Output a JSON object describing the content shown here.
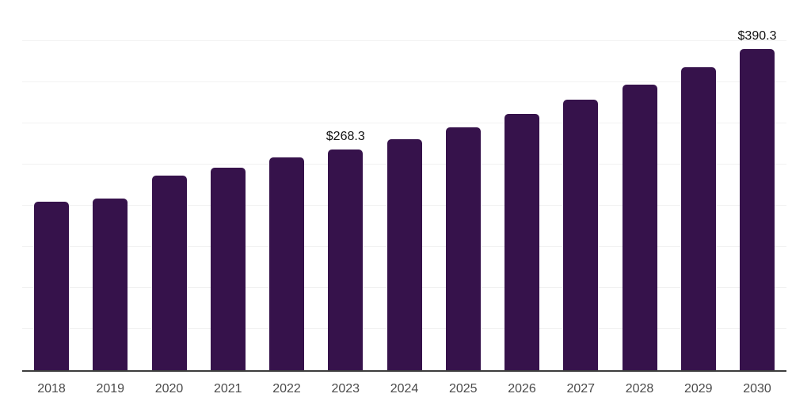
{
  "chart_data": {
    "type": "bar",
    "categories": [
      "2018",
      "2019",
      "2020",
      "2021",
      "2022",
      "2023",
      "2024",
      "2025",
      "2026",
      "2027",
      "2028",
      "2029",
      "2030"
    ],
    "values": [
      204.5,
      209.0,
      236.2,
      246.6,
      258.6,
      268.3,
      281.0,
      295.4,
      311.4,
      329.0,
      347.3,
      368.0,
      390.3
    ],
    "bar_labels": [
      "",
      "",
      "",
      "",
      "",
      "$268.3",
      "",
      "",
      "",
      "",
      "",
      "",
      "$390.3"
    ],
    "xlabel": "",
    "ylabel": "",
    "ylim": [
      0,
      450
    ],
    "grid_step": 50,
    "grid": true,
    "legend": false,
    "y_tick_labels_visible": false,
    "colors": {
      "bar": "#36124B",
      "grid": "#f1f1f1",
      "axis": "#3d3d3d",
      "tick_label": "#4a4a4a",
      "data_label": "#111111"
    }
  }
}
